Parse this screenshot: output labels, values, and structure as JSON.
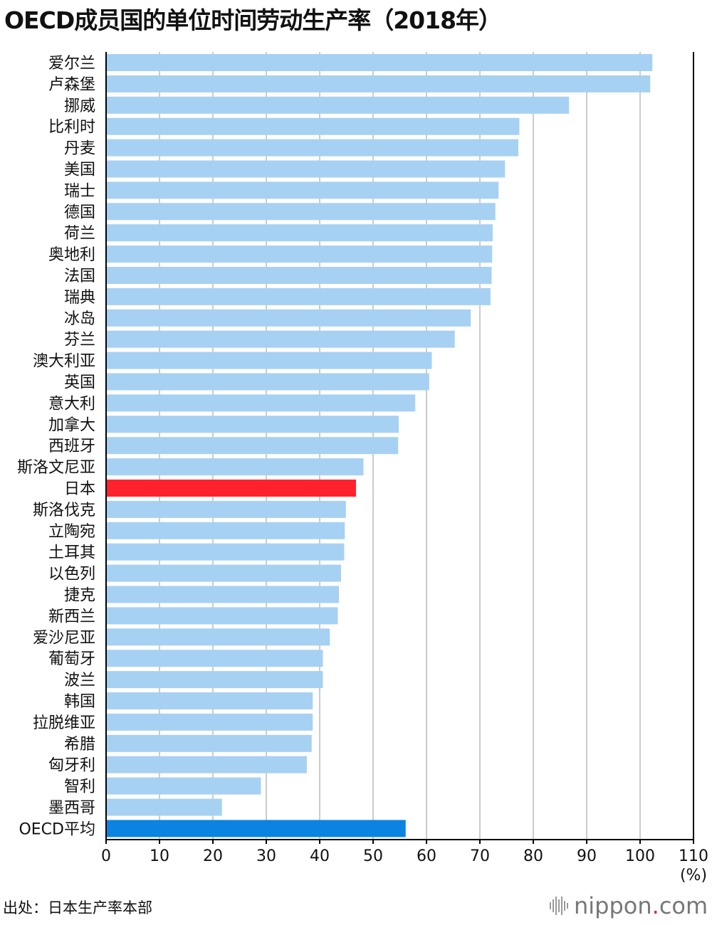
{
  "title": "OECD成员国的单位时间劳动生产率（2018年）",
  "source": "出处：日本生产率本部",
  "logo": {
    "name": "nippon",
    "dot": ".",
    "suffix": "com"
  },
  "colors": {
    "bar": "#a7d1f3",
    "highlight": "#ff222d",
    "average": "#0a84e0",
    "grid": "#cccccc",
    "axis": "#000000"
  },
  "chart_data": {
    "type": "bar",
    "orientation": "horizontal",
    "unit_label": "(%)",
    "xlim": [
      0,
      110
    ],
    "xticks": [
      "0",
      "10",
      "20",
      "30",
      "40",
      "50",
      "60",
      "70",
      "80",
      "90",
      "100",
      "110"
    ],
    "grid": true,
    "categories": [
      "爱尔兰",
      "卢森堡",
      "挪威",
      "比利时",
      "丹麦",
      "美国",
      "瑞士",
      "德国",
      "荷兰",
      "奥地利",
      "法国",
      "瑞典",
      "冰岛",
      "芬兰",
      "澳大利亚",
      "英国",
      "意大利",
      "加拿大",
      "西班牙",
      "斯洛文尼亚",
      "日本",
      "斯洛伐克",
      "立陶宛",
      "土耳其",
      "以色列",
      "捷克",
      "新西兰",
      "爱沙尼亚",
      "葡萄牙",
      "波兰",
      "韩国",
      "拉脱维亚",
      "希腊",
      "匈牙利",
      "智利",
      "墨西哥",
      "OECD平均"
    ],
    "values": [
      102.3,
      101.9,
      86.7,
      77.4,
      77.2,
      74.7,
      73.5,
      72.9,
      72.4,
      72.3,
      72.2,
      72.0,
      68.3,
      65.3,
      61.0,
      60.5,
      57.9,
      54.8,
      54.7,
      48.2,
      46.8,
      44.9,
      44.7,
      44.6,
      44.0,
      43.6,
      43.4,
      41.9,
      40.6,
      40.6,
      38.7,
      38.7,
      38.5,
      37.6,
      29.0,
      21.7,
      56.1
    ],
    "highlight": [
      "日本"
    ],
    "average_label": "OECD平均"
  }
}
